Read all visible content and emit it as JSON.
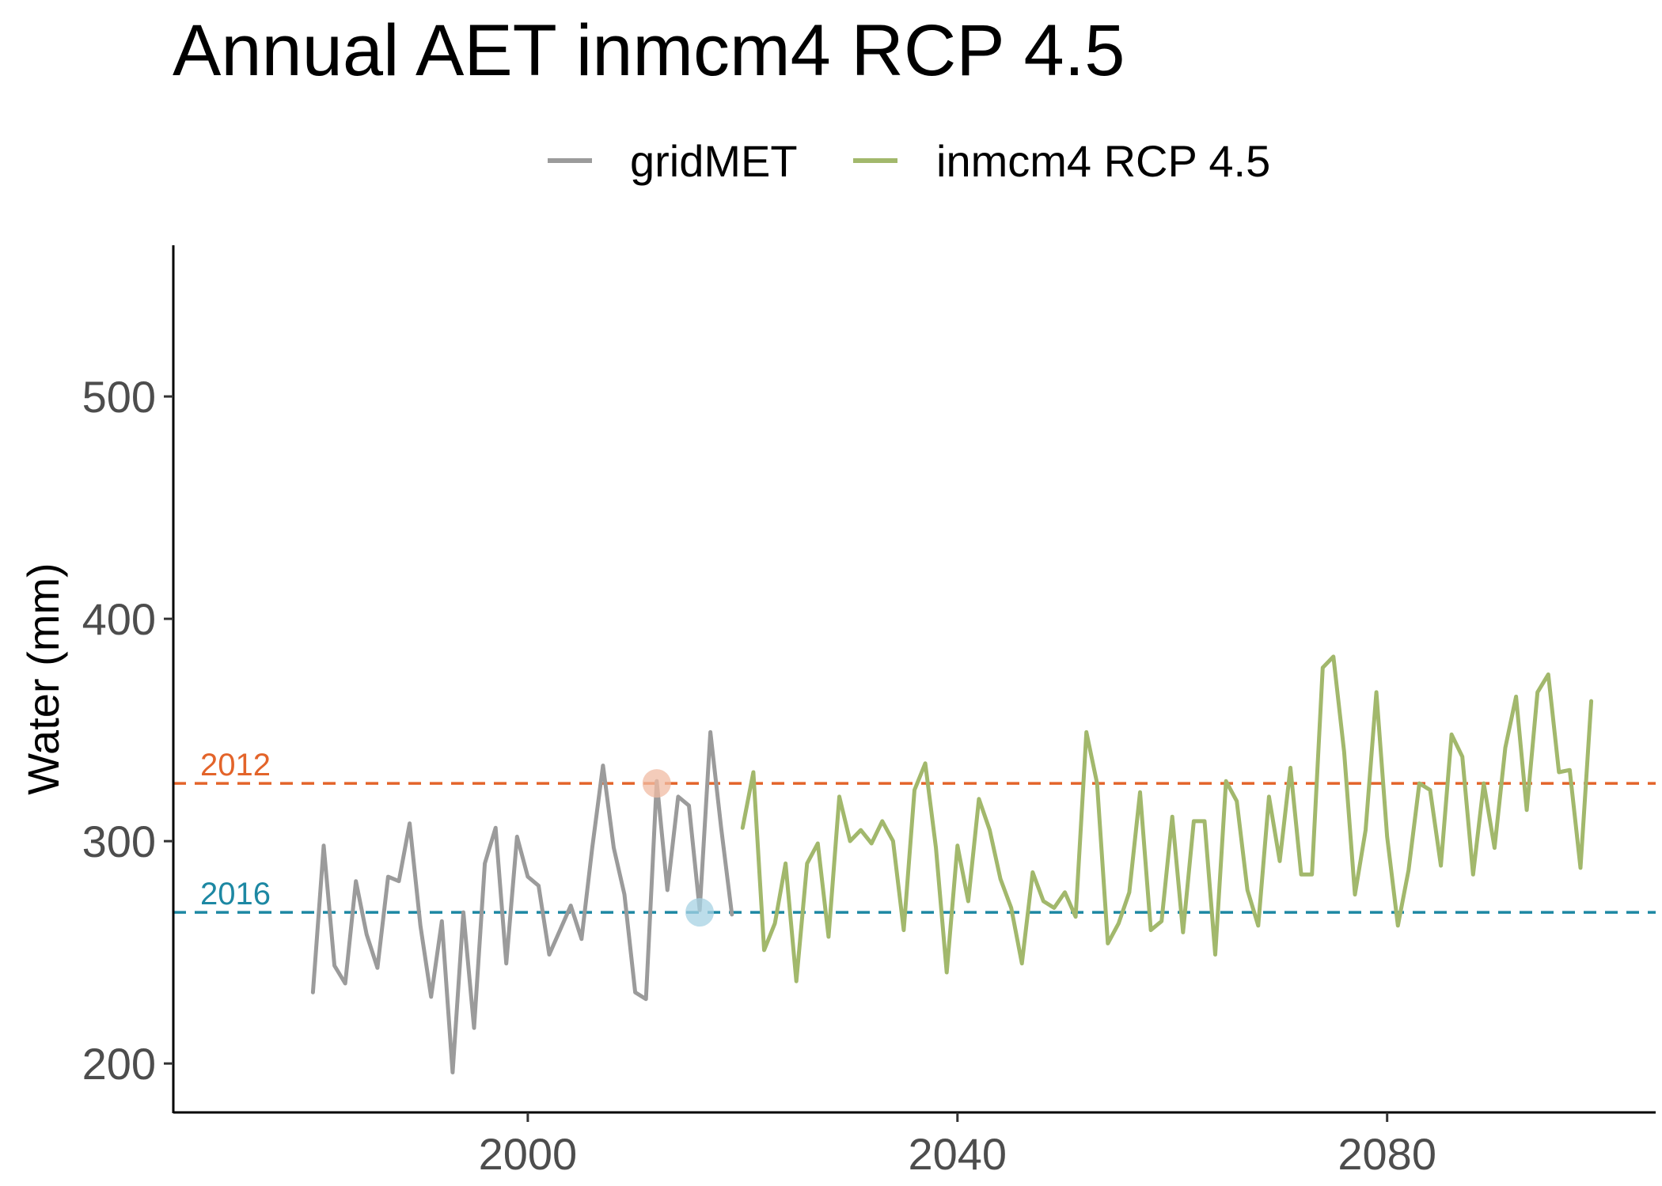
{
  "chart_data": {
    "type": "line",
    "title": "Annual AET inmcm4 RCP 4.5",
    "xlabel": "",
    "ylabel": "Water (mm)",
    "xlim": [
      1967,
      2105
    ],
    "ylim": [
      178,
      568
    ],
    "x_ticks": [
      2000,
      2040,
      2080
    ],
    "y_ticks": [
      200,
      300,
      400,
      500
    ],
    "grid": false,
    "legend_position": "top",
    "series": [
      {
        "name": "gridMET",
        "color": "#9b9b9b",
        "x": [
          1980,
          1981,
          1982,
          1983,
          1984,
          1985,
          1986,
          1987,
          1988,
          1989,
          1990,
          1991,
          1992,
          1993,
          1994,
          1995,
          1996,
          1997,
          1998,
          1999,
          2000,
          2001,
          2002,
          2003,
          2004,
          2005,
          2006,
          2007,
          2008,
          2009,
          2010,
          2011,
          2012,
          2013,
          2014,
          2015,
          2016,
          2017,
          2018,
          2019
        ],
        "y": [
          232,
          298,
          244,
          236,
          282,
          258,
          243,
          284,
          282,
          308,
          262,
          230,
          264,
          196,
          268,
          216,
          290,
          306,
          245,
          302,
          284,
          280,
          249,
          260,
          271,
          256,
          297,
          334,
          297,
          276,
          232,
          229,
          327,
          278,
          320,
          316,
          269,
          349,
          306,
          267
        ]
      },
      {
        "name": "inmcm4 RCP 4.5",
        "color": "#a2b86c",
        "x": [
          2020,
          2021,
          2022,
          2023,
          2024,
          2025,
          2026,
          2027,
          2028,
          2029,
          2030,
          2031,
          2032,
          2033,
          2034,
          2035,
          2036,
          2037,
          2038,
          2039,
          2040,
          2041,
          2042,
          2043,
          2044,
          2045,
          2046,
          2047,
          2048,
          2049,
          2050,
          2051,
          2052,
          2053,
          2054,
          2055,
          2056,
          2057,
          2058,
          2059,
          2060,
          2061,
          2062,
          2063,
          2064,
          2065,
          2066,
          2067,
          2068,
          2069,
          2070,
          2071,
          2072,
          2073,
          2074,
          2075,
          2076,
          2077,
          2078,
          2079,
          2080,
          2081,
          2082,
          2083,
          2084,
          2085,
          2086,
          2087,
          2088,
          2089,
          2090,
          2091,
          2092,
          2093,
          2094,
          2095,
          2096,
          2097,
          2098,
          2099
        ],
        "y": [
          306,
          331,
          251,
          263,
          290,
          237,
          290,
          299,
          257,
          320,
          300,
          305,
          299,
          309,
          300,
          260,
          323,
          335,
          297,
          241,
          298,
          273,
          319,
          305,
          283,
          270,
          245,
          286,
          273,
          270,
          277,
          266,
          349,
          326,
          254,
          263,
          277,
          322,
          260,
          264,
          311,
          259,
          309,
          309,
          249,
          327,
          318,
          278,
          262,
          320,
          291,
          333,
          285,
          285,
          378,
          383,
          340,
          276,
          305,
          367,
          302,
          262,
          287,
          326,
          323,
          289,
          348,
          338,
          285,
          326,
          297,
          342,
          365,
          314,
          367,
          375,
          331,
          332,
          288,
          363
        ]
      }
    ],
    "reference_lines": [
      {
        "label": "2012",
        "value": 326,
        "year": 2012,
        "color": "#e3642a",
        "marker_color": "#f0bba3"
      },
      {
        "label": "2016",
        "value": 268,
        "year": 2016,
        "color": "#1d88a3",
        "marker_color": "#a6d2e3"
      }
    ]
  }
}
